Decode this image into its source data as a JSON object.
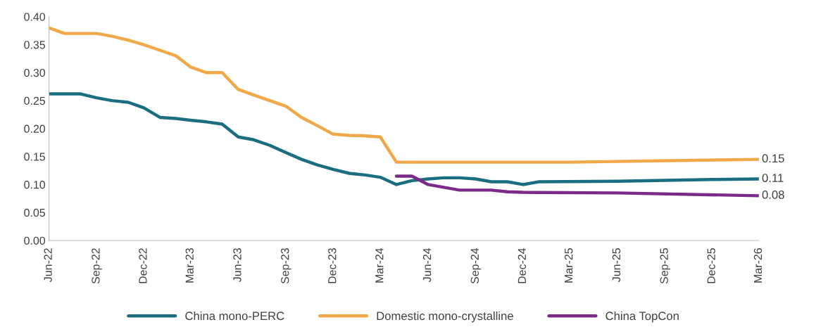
{
  "chart_data": {
    "type": "line",
    "xlim": [
      "2022-06",
      "2026-03"
    ],
    "xticks": [
      {
        "value": "2022-06",
        "label": "Jun-22"
      },
      {
        "value": "2022-09",
        "label": "Sep-22"
      },
      {
        "value": "2022-12",
        "label": "Dec-22"
      },
      {
        "value": "2023-03",
        "label": "Mar-23"
      },
      {
        "value": "2023-06",
        "label": "Jun-23"
      },
      {
        "value": "2023-09",
        "label": "Sep-23"
      },
      {
        "value": "2023-12",
        "label": "Dec-23"
      },
      {
        "value": "2024-03",
        "label": "Mar-24"
      },
      {
        "value": "2024-06",
        "label": "Jun-24"
      },
      {
        "value": "2024-09",
        "label": "Sep-24"
      },
      {
        "value": "2024-12",
        "label": "Dec-24"
      },
      {
        "value": "2025-03",
        "label": "Mar-25"
      },
      {
        "value": "2025-06",
        "label": "Jun-25"
      },
      {
        "value": "2025-09",
        "label": "Sep-25"
      },
      {
        "value": "2025-12",
        "label": "Dec-25"
      },
      {
        "value": "2026-03",
        "label": "Mar-26"
      }
    ],
    "ylim": [
      0,
      0.4
    ],
    "yticks": [
      {
        "value": 0,
        "label": "0.00"
      },
      {
        "value": 0.05,
        "label": "0.05"
      },
      {
        "value": 0.1,
        "label": "0.10"
      },
      {
        "value": 0.15,
        "label": "0.15"
      },
      {
        "value": 0.2,
        "label": "0.20"
      },
      {
        "value": 0.25,
        "label": "0.25"
      },
      {
        "value": 0.3,
        "label": "0.30"
      },
      {
        "value": 0.35,
        "label": "0.35"
      },
      {
        "value": 0.4,
        "label": "0.40"
      }
    ],
    "grid": false,
    "legend": "bottom",
    "series": [
      {
        "name": "China mono-PERC",
        "color": "#1a6e80",
        "x": [
          "2022-06",
          "2022-07",
          "2022-08",
          "2022-09",
          "2022-10",
          "2022-11",
          "2022-12",
          "2023-01",
          "2023-02",
          "2023-03",
          "2023-04",
          "2023-05",
          "2023-06",
          "2023-07",
          "2023-08",
          "2023-09",
          "2023-10",
          "2023-11",
          "2023-12",
          "2024-01",
          "2024-02",
          "2024-03",
          "2024-04",
          "2024-05",
          "2024-06",
          "2024-07",
          "2024-08",
          "2024-09",
          "2024-10",
          "2024-11",
          "2024-12",
          "2025-01",
          "2025-06",
          "2025-12",
          "2026-03"
        ],
        "values": [
          0.262,
          0.262,
          0.262,
          0.255,
          0.25,
          0.247,
          0.237,
          0.22,
          0.218,
          0.215,
          0.212,
          0.208,
          0.185,
          0.18,
          0.17,
          0.157,
          0.145,
          0.135,
          0.127,
          0.12,
          0.117,
          0.113,
          0.1,
          0.107,
          0.11,
          0.112,
          0.112,
          0.11,
          0.105,
          0.105,
          0.1,
          0.105,
          0.106,
          0.109,
          0.11
        ],
        "value_labels": [
          null,
          null,
          null,
          null,
          null,
          null,
          null,
          null,
          null,
          null,
          null,
          null,
          null,
          null,
          null,
          null,
          null,
          null,
          null,
          null,
          null,
          null,
          null,
          null,
          null,
          null,
          null,
          null,
          null,
          null,
          null,
          null,
          null,
          null,
          "0.11"
        ]
      },
      {
        "name": "Domestic mono-crystalline",
        "color": "#f0a848",
        "x": [
          "2022-06",
          "2022-07",
          "2022-08",
          "2022-09",
          "2022-10",
          "2022-11",
          "2022-12",
          "2023-01",
          "2023-02",
          "2023-03",
          "2023-04",
          "2023-05",
          "2023-06",
          "2023-07",
          "2023-08",
          "2023-09",
          "2023-10",
          "2023-11",
          "2023-12",
          "2024-01",
          "2024-02",
          "2024-03",
          "2024-04",
          "2025-03",
          "2026-03"
        ],
        "values": [
          0.38,
          0.37,
          0.37,
          0.37,
          0.365,
          0.358,
          0.35,
          0.34,
          0.33,
          0.31,
          0.3,
          0.3,
          0.27,
          0.26,
          0.25,
          0.24,
          0.22,
          0.205,
          0.19,
          0.188,
          0.187,
          0.185,
          0.14,
          0.14,
          0.145
        ],
        "value_labels": [
          null,
          null,
          null,
          null,
          null,
          null,
          null,
          null,
          null,
          null,
          null,
          null,
          null,
          null,
          null,
          null,
          null,
          null,
          null,
          null,
          null,
          null,
          null,
          null,
          "0.15"
        ]
      },
      {
        "name": "China TopCon",
        "color": "#7b2a8a",
        "x": [
          "2024-04",
          "2024-05",
          "2024-06",
          "2024-07",
          "2024-08",
          "2024-09",
          "2024-10",
          "2024-11",
          "2024-12",
          "2025-06",
          "2026-03"
        ],
        "values": [
          0.115,
          0.115,
          0.1,
          0.095,
          0.09,
          0.09,
          0.09,
          0.087,
          0.086,
          0.085,
          0.08
        ],
        "value_labels": [
          null,
          null,
          null,
          null,
          null,
          null,
          null,
          null,
          null,
          null,
          "0.08"
        ]
      }
    ]
  }
}
